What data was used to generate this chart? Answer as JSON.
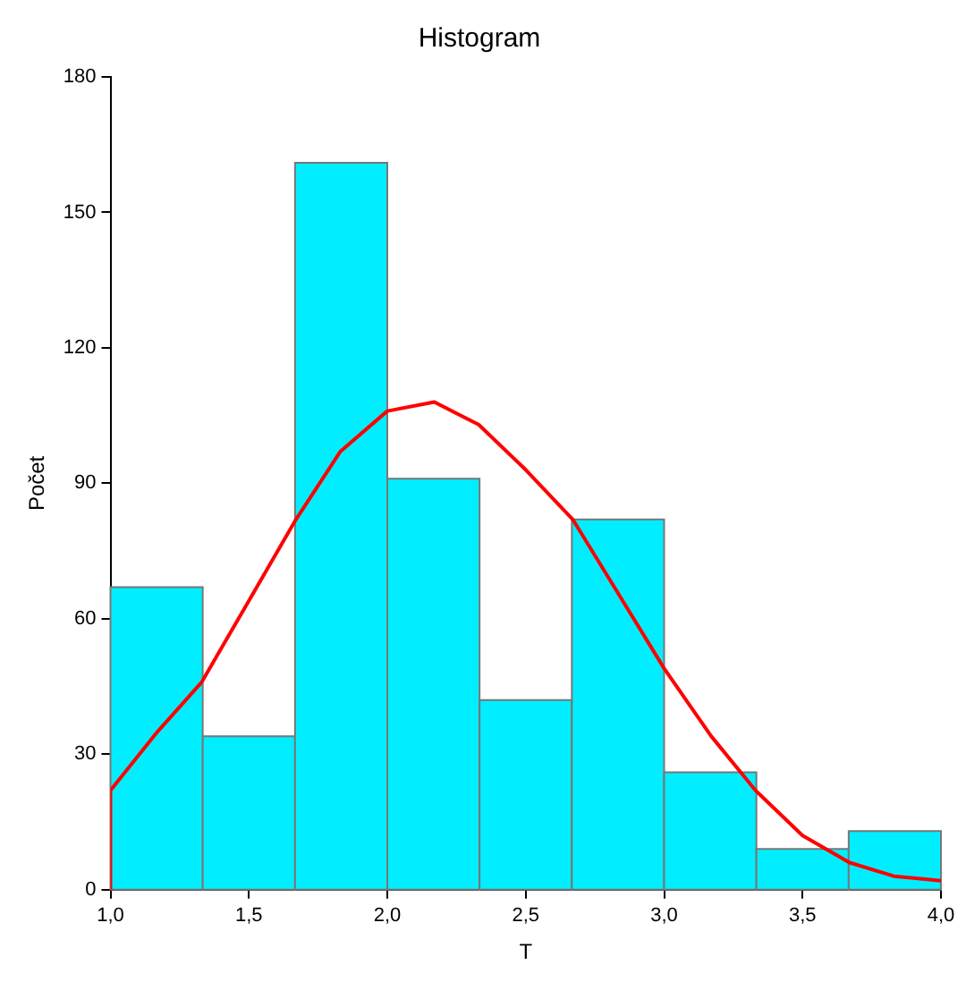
{
  "chart_data": {
    "type": "histogram",
    "title": "Histogram",
    "xlabel": "T",
    "ylabel": "Počet",
    "bins": [
      1.0,
      1.3333,
      1.6667,
      2.0,
      2.3333,
      2.6667,
      3.0,
      3.3333,
      3.6667,
      4.0
    ],
    "series": [
      {
        "color": "#00eeff",
        "values": [
          67,
          34,
          161,
          91,
          42,
          82,
          26,
          9,
          13
        ]
      },
      {
        "type": "line",
        "color": "#ff0000",
        "x": [
          1.0,
          1.0,
          1.17,
          1.33,
          1.5,
          1.67,
          1.83,
          2.0,
          2.17,
          2.33,
          2.5,
          2.67,
          2.83,
          3.0,
          3.17,
          3.33,
          3.5,
          3.67,
          3.83,
          4.0
        ],
        "values": [
          0,
          22,
          35,
          46,
          64,
          82,
          97,
          106,
          108,
          103,
          93,
          82,
          66,
          49,
          34,
          22,
          12,
          6,
          3,
          2
        ]
      }
    ],
    "xlim": [
      1.0,
      4.0
    ],
    "xticks": [
      {
        "value": 1,
        "label": "1,0"
      },
      {
        "value": 1.5,
        "label": "1,5"
      },
      {
        "value": 2,
        "label": "2,0"
      },
      {
        "value": 2.5,
        "label": "2,5"
      },
      {
        "value": 3,
        "label": "3,0"
      },
      {
        "value": 3.5,
        "label": "3,5"
      },
      {
        "value": 4,
        "label": "4,0"
      }
    ],
    "ylim": [
      0,
      180
    ],
    "yticks": [
      0,
      30,
      60,
      90,
      120,
      150,
      180
    ],
    "grid": false,
    "legend": false,
    "marker": "none"
  }
}
